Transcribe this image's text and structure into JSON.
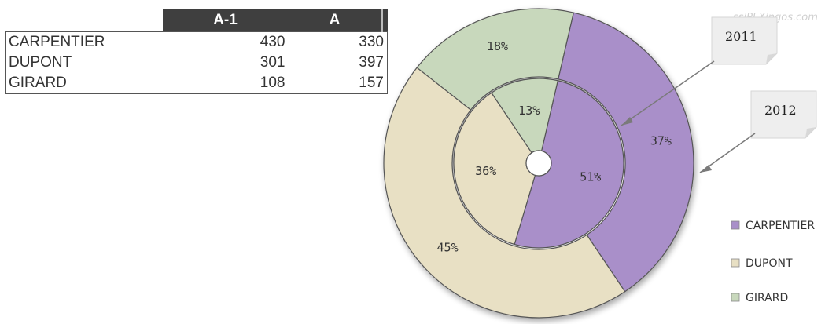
{
  "table": {
    "headers": [
      "A-1",
      "A"
    ],
    "rows": [
      {
        "name": "CARPENTIER",
        "a1": "430",
        "a": "330"
      },
      {
        "name": "DUPONT",
        "a1": "301",
        "a": "397"
      },
      {
        "name": "GIRARD",
        "a1": "108",
        "a": "157"
      }
    ]
  },
  "watermark": "ssiPLXingos.com",
  "chart_data": {
    "type": "pie",
    "subtype": "doughnut",
    "categories": [
      "CARPENTIER",
      "DUPONT",
      "GIRARD"
    ],
    "colors": [
      "#a98fc9",
      "#e8e0c4",
      "#c8d8bc"
    ],
    "series": [
      {
        "name": "2011",
        "ring": "inner",
        "values": [
          51,
          36,
          13
        ],
        "labels": [
          "51%",
          "36%",
          "13%"
        ]
      },
      {
        "name": "2012",
        "ring": "outer",
        "values": [
          37,
          45,
          18
        ],
        "labels": [
          "37%",
          "45%",
          "18%"
        ]
      }
    ],
    "annotations": [
      "2011",
      "2012"
    ],
    "legend": {
      "position": "right",
      "entries": [
        "CARPENTIER",
        "DUPONT",
        "GIRARD"
      ]
    }
  }
}
